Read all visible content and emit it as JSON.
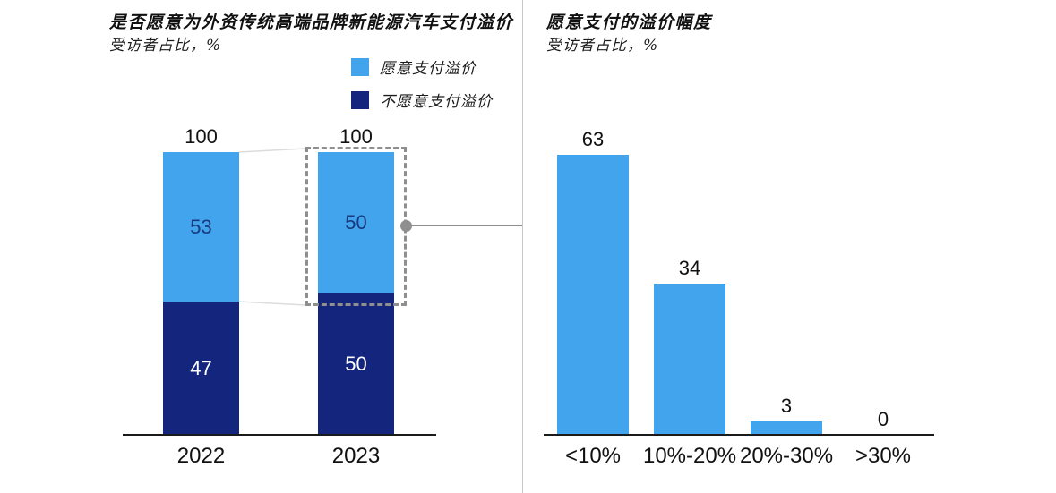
{
  "colors": {
    "light_blue": "#43A4EE",
    "dark_navy": "#14257D",
    "axis": "#1A1A1A",
    "text": "#111111",
    "callout_gray": "#8F8F8F",
    "divider_gray": "#C8C8C8",
    "faint_connector": "#DCDCDC",
    "value_on_light": "#173B7E",
    "value_on_dark": "#FFFFFF"
  },
  "chart_data": [
    {
      "type": "bar",
      "subtype": "stacked-column",
      "title": "是否愿意为外资传统高端品牌新能源汽车支付溢价",
      "subtitle": "受访者占比，%",
      "categories": [
        "2022",
        "2023"
      ],
      "series": [
        {
          "name": "愿意支付溢价",
          "color": "#43A4EE",
          "values": [
            53,
            50
          ],
          "value_label_color": "#173B7E"
        },
        {
          "name": "不愿意支付溢价",
          "color": "#14257D",
          "values": [
            47,
            50
          ],
          "value_label_color": "#FFFFFF"
        }
      ],
      "totals": [
        100,
        100
      ],
      "ylim": [
        0,
        100
      ],
      "grid": false,
      "legend_position": "top-right",
      "highlight": {
        "category": "2023",
        "series": "愿意支付溢价",
        "style": "gray dashed box around 2023 willing-to-pay segment, linked by gray dot and line to right chart"
      }
    },
    {
      "type": "bar",
      "title": "愿意支付的溢价幅度",
      "subtitle": "受访者占比，%",
      "categories": [
        "<10%",
        "10%-20%",
        "20%-30%",
        ">30%"
      ],
      "values": [
        63,
        34,
        3,
        0
      ],
      "bar_color": "#43A4EE",
      "ylim": [
        0,
        70
      ],
      "grid": false,
      "legend_position": "none"
    }
  ]
}
